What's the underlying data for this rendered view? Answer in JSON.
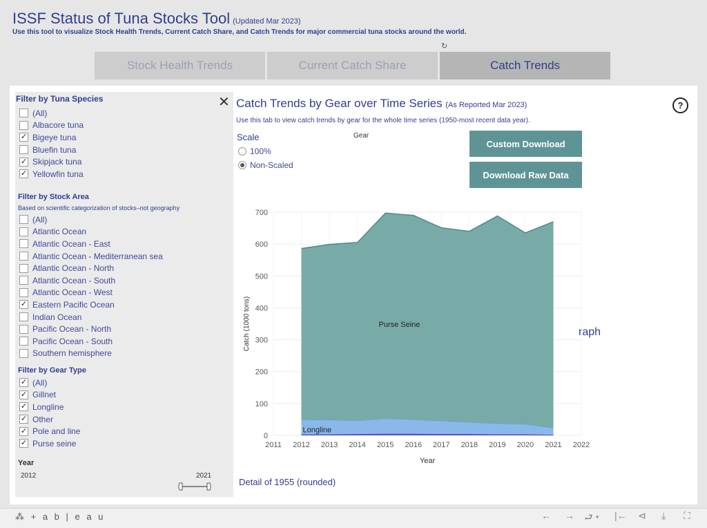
{
  "header": {
    "title": "ISSF Status of Tuna Stocks Tool",
    "updated": "(Updated Mar 2023)",
    "subtitle": "Use this tool to visualize Stock Health Trends, Current Catch Share, and Catch Trends for major commercial tuna stocks around the world.",
    "refresh_icon": "↻"
  },
  "tabs": [
    {
      "label": "Stock Health Trends",
      "active": false
    },
    {
      "label": "Current Catch Share",
      "active": false
    },
    {
      "label": "Catch Trends",
      "active": true
    }
  ],
  "sidebar": {
    "close_icon": "✕",
    "species": {
      "heading": "Filter by Tuna Species",
      "items": [
        {
          "label": "(All)",
          "checked": false
        },
        {
          "label": "Albacore tuna",
          "checked": false
        },
        {
          "label": "Bigeye tuna",
          "checked": true
        },
        {
          "label": "Bluefin tuna",
          "checked": false
        },
        {
          "label": "Skipjack tuna",
          "checked": true
        },
        {
          "label": "Yellowfin tuna",
          "checked": true
        }
      ]
    },
    "area": {
      "heading": "Filter by Stock Area",
      "note": "Based on scientific categorization of stocks–not geography",
      "items": [
        {
          "label": "(All)",
          "checked": false
        },
        {
          "label": "Atlantic Ocean",
          "checked": false
        },
        {
          "label": "Atlantic Ocean - East",
          "checked": false
        },
        {
          "label": "Atlantic Ocean - Mediterranean sea",
          "checked": false
        },
        {
          "label": "Atlantic Ocean - North",
          "checked": false
        },
        {
          "label": "Atlantic Ocean - South",
          "checked": false
        },
        {
          "label": "Atlantic Ocean - West",
          "checked": false
        },
        {
          "label": "Eastern Pacific Ocean",
          "checked": true
        },
        {
          "label": "Indian Ocean",
          "checked": false
        },
        {
          "label": "Pacific Ocean - North",
          "checked": false
        },
        {
          "label": "Pacific Ocean - South",
          "checked": false
        },
        {
          "label": "Southern hemisphere",
          "checked": false
        }
      ]
    },
    "gear": {
      "heading": "Filter by Gear Type",
      "items": [
        {
          "label": "(All)",
          "checked": true
        },
        {
          "label": "Gillnet",
          "checked": true
        },
        {
          "label": "Longline",
          "checked": true
        },
        {
          "label": "Other",
          "checked": true
        },
        {
          "label": "Pole and line",
          "checked": true
        },
        {
          "label": "Purse seine",
          "checked": true
        }
      ]
    },
    "year": {
      "heading": "Year",
      "min": "2012",
      "max": "2021"
    }
  },
  "main": {
    "chart_title": "Catch Trends by Gear over Time Series",
    "chart_asof": "(As Reported Mar 2023)",
    "description": "Use this tab to view catch trends by gear for the whole time series (1950-most recent data year).",
    "scale_label": "Scale",
    "scale_options": [
      {
        "label": "100%",
        "selected": false
      },
      {
        "label": "Non-Scaled",
        "selected": true
      }
    ],
    "gear_label": "Gear",
    "custom_download": "Custom Download",
    "raw_download": "Download Raw Data",
    "help_icon": "?",
    "hidden_fragment": "raph",
    "detail": "Detail of 1955 (rounded)"
  },
  "chart_data": {
    "type": "area",
    "stacked": true,
    "xlabel": "Year",
    "ylabel": "Catch (1000 tons)",
    "x": [
      2012,
      2013,
      2014,
      2015,
      2016,
      2017,
      2018,
      2019,
      2020,
      2021
    ],
    "xlim": [
      2011,
      2022
    ],
    "xticks": [
      "2011",
      "2012",
      "2013",
      "2014",
      "2015",
      "2016",
      "2017",
      "2018",
      "2019",
      "2020",
      "2021",
      "2022"
    ],
    "ylim": [
      0,
      700
    ],
    "yticks": [
      "0",
      "100",
      "200",
      "300",
      "400",
      "500",
      "600",
      "700"
    ],
    "grid": true,
    "series": [
      {
        "name": "Other",
        "color": "#6b55d6",
        "values": [
          3,
          3,
          4,
          5,
          5,
          4,
          4,
          3,
          3,
          2
        ]
      },
      {
        "name": "Longline",
        "color": "#8ab8ea",
        "values": [
          47,
          46,
          43,
          48,
          45,
          42,
          38,
          35,
          33,
          22
        ]
      },
      {
        "name": "Purse Seine",
        "color": "#78aba8",
        "values": [
          536,
          550,
          558,
          644,
          640,
          605,
          598,
          650,
          599,
          646
        ]
      }
    ]
  },
  "footer": {
    "logo": "⁂ + a b | e a u",
    "icons": [
      "←",
      "→",
      "⮐ ▾",
      "|←",
      "⊲",
      "⤓",
      "⛶"
    ]
  }
}
